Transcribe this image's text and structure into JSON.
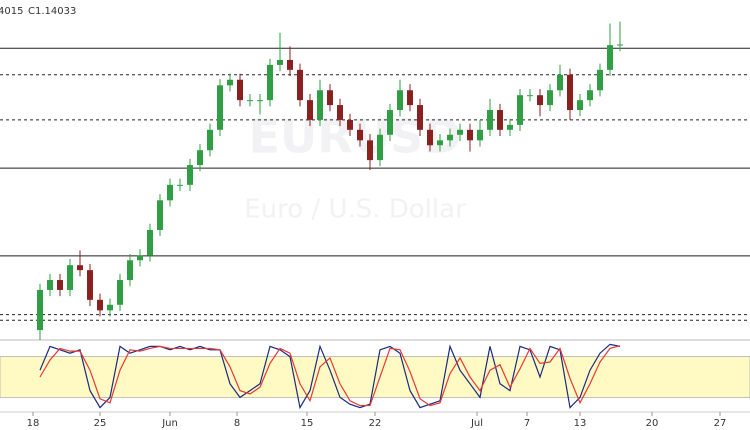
{
  "chart_data": [
    {
      "type": "candlestick",
      "info": [
        "4015",
        "C1.14033"
      ],
      "watermark": "EURUSD",
      "subtitle": "Euro / U.S. Dollar",
      "colors": {
        "up": "#2f9e44",
        "down": "#8b2020",
        "level": "#222"
      },
      "xlim": [
        -4,
        71
      ],
      "ylim": [
        1.0925,
        1.1475
      ],
      "xticks": [
        {
          "value": -0.7,
          "label": "18"
        },
        {
          "value": 6,
          "label": "25"
        },
        {
          "value": 13,
          "label": "Jun"
        },
        {
          "value": 19.7,
          "label": "8"
        },
        {
          "value": 26.7,
          "label": "15"
        },
        {
          "value": 33.5,
          "label": "22"
        },
        {
          "value": 43.7,
          "label": "Jul"
        },
        {
          "value": 48.7,
          "label": "7"
        },
        {
          "value": 54,
          "label": "13"
        },
        {
          "value": 61.2,
          "label": "20"
        },
        {
          "value": 68,
          "label": "27"
        }
      ],
      "levels": [
        {
          "value": 1.1397,
          "style": "solid"
        },
        {
          "value": 1.1354,
          "style": "dashed"
        },
        {
          "value": 1.1281,
          "style": "dashed"
        },
        {
          "value": 1.1203,
          "style": "solid"
        },
        {
          "value": 1.1061,
          "style": "solid"
        },
        {
          "value": 1.0966,
          "style": "dashed"
        },
        {
          "value": 1.0957,
          "style": "dashed"
        }
      ],
      "x": [
        0,
        1,
        2,
        3,
        4,
        5,
        6,
        7,
        8,
        9,
        10,
        11,
        12,
        13,
        14,
        15,
        16,
        17,
        18,
        19,
        20,
        21,
        22,
        23,
        24,
        25,
        26,
        27,
        28,
        29,
        30,
        31,
        32,
        33,
        34,
        35,
        36,
        37,
        38,
        39,
        40,
        41,
        42,
        43,
        44,
        45,
        46,
        47,
        48,
        49,
        50,
        51,
        52,
        53,
        54,
        55,
        56,
        57,
        58
      ],
      "open": [
        1.0941,
        1.1006,
        1.1022,
        1.1006,
        1.1046,
        1.1038,
        1.099,
        1.0973,
        1.0982,
        1.1022,
        1.1054,
        1.1062,
        1.1103,
        1.1151,
        1.1176,
        1.1176,
        1.1208,
        1.1232,
        1.1265,
        1.1337,
        1.1346,
        1.1313,
        1.1313,
        1.1313,
        1.137,
        1.1378,
        1.1362,
        1.1313,
        1.1281,
        1.1329,
        1.1305,
        1.1281,
        1.1265,
        1.1248,
        1.1216,
        1.1257,
        1.1297,
        1.1329,
        1.1305,
        1.1265,
        1.124,
        1.1248,
        1.1257,
        1.1265,
        1.1248,
        1.1265,
        1.1297,
        1.1265,
        1.1273,
        1.1321,
        1.1321,
        1.1305,
        1.1329,
        1.1354,
        1.1297,
        1.1313,
        1.1329,
        1.1362,
        1.1402
      ],
      "high": [
        1.1016,
        1.1032,
        1.1032,
        1.1056,
        1.107,
        1.1048,
        1.1,
        1.0992,
        1.1032,
        1.1064,
        1.1072,
        1.1113,
        1.1161,
        1.1186,
        1.1186,
        1.1218,
        1.1242,
        1.1275,
        1.1347,
        1.1356,
        1.1356,
        1.1323,
        1.1323,
        1.138,
        1.1422,
        1.14,
        1.1372,
        1.1323,
        1.1346,
        1.1339,
        1.1315,
        1.1291,
        1.1275,
        1.1258,
        1.1267,
        1.1307,
        1.1346,
        1.1339,
        1.1315,
        1.1275,
        1.1258,
        1.1267,
        1.1275,
        1.1275,
        1.1281,
        1.1315,
        1.1307,
        1.1283,
        1.1331,
        1.1331,
        1.1331,
        1.1339,
        1.137,
        1.1364,
        1.1323,
        1.1339,
        1.1372,
        1.1437,
        1.144
      ],
      "low": [
        1.0925,
        1.0996,
        1.0996,
        1.0996,
        1.1028,
        1.098,
        1.0963,
        1.0963,
        1.0972,
        1.1012,
        1.1044,
        1.1052,
        1.1093,
        1.1141,
        1.1166,
        1.1166,
        1.1198,
        1.1222,
        1.1255,
        1.1327,
        1.1303,
        1.1303,
        1.129,
        1.1303,
        1.136,
        1.1352,
        1.1303,
        1.1271,
        1.1271,
        1.1295,
        1.1271,
        1.1255,
        1.1238,
        1.12,
        1.1206,
        1.1247,
        1.1287,
        1.1295,
        1.1255,
        1.123,
        1.123,
        1.1238,
        1.1247,
        1.123,
        1.1238,
        1.1255,
        1.1255,
        1.1255,
        1.1263,
        1.1311,
        1.1287,
        1.1295,
        1.1319,
        1.1281,
        1.1287,
        1.1303,
        1.1319,
        1.1352,
        1.1392
      ],
      "close": [
        1.1006,
        1.1022,
        1.1006,
        1.1046,
        1.1038,
        1.099,
        1.0973,
        1.0982,
        1.1022,
        1.1054,
        1.1062,
        1.1103,
        1.1151,
        1.1176,
        1.1176,
        1.1208,
        1.1232,
        1.1265,
        1.1337,
        1.1346,
        1.1313,
        1.1313,
        1.1313,
        1.137,
        1.1378,
        1.1362,
        1.1313,
        1.1281,
        1.1329,
        1.1305,
        1.1281,
        1.1265,
        1.1248,
        1.1216,
        1.1257,
        1.1297,
        1.1329,
        1.1305,
        1.1265,
        1.124,
        1.1248,
        1.1257,
        1.1265,
        1.1248,
        1.1265,
        1.1297,
        1.1265,
        1.1273,
        1.1321,
        1.1321,
        1.1305,
        1.1329,
        1.1354,
        1.1297,
        1.1313,
        1.1329,
        1.1362,
        1.1402,
        1.1403
      ]
    },
    {
      "type": "line",
      "xlim": [
        -4,
        71
      ],
      "ylim": [
        0,
        100
      ],
      "band": [
        20,
        80
      ],
      "band_color": "#fff9c4",
      "x": [
        0,
        1,
        2,
        3,
        4,
        5,
        6,
        7,
        8,
        9,
        10,
        11,
        12,
        13,
        14,
        15,
        16,
        17,
        18,
        19,
        20,
        21,
        22,
        23,
        24,
        25,
        26,
        27,
        28,
        29,
        30,
        31,
        32,
        33,
        34,
        35,
        36,
        37,
        38,
        39,
        40,
        41,
        42,
        43,
        44,
        45,
        46,
        47,
        48,
        49,
        50,
        51,
        52,
        53,
        54,
        55,
        56,
        57,
        58
      ],
      "series": [
        {
          "color": "#1a2a80",
          "values": [
            60,
            95,
            90,
            85,
            90,
            30,
            5,
            20,
            95,
            85,
            90,
            95,
            95,
            90,
            95,
            90,
            95,
            90,
            90,
            40,
            20,
            30,
            40,
            95,
            90,
            80,
            5,
            30,
            95,
            60,
            20,
            10,
            5,
            10,
            90,
            95,
            85,
            30,
            5,
            10,
            15,
            95,
            60,
            40,
            20,
            95,
            40,
            30,
            95,
            90,
            50,
            95,
            90,
            5,
            20,
            60,
            85,
            98,
            95
          ]
        },
        {
          "color": "#e53935",
          "values": [
            50,
            75,
            92,
            88,
            88,
            60,
            18,
            12,
            60,
            90,
            88,
            92,
            95,
            92,
            92,
            92,
            92,
            92,
            90,
            65,
            30,
            25,
            35,
            70,
            92,
            85,
            40,
            15,
            65,
            78,
            40,
            15,
            8,
            8,
            50,
            92,
            90,
            58,
            18,
            8,
            12,
            55,
            78,
            50,
            30,
            60,
            68,
            35,
            62,
            92,
            70,
            72,
            92,
            48,
            12,
            40,
            72,
            92,
            96
          ]
        }
      ]
    }
  ]
}
